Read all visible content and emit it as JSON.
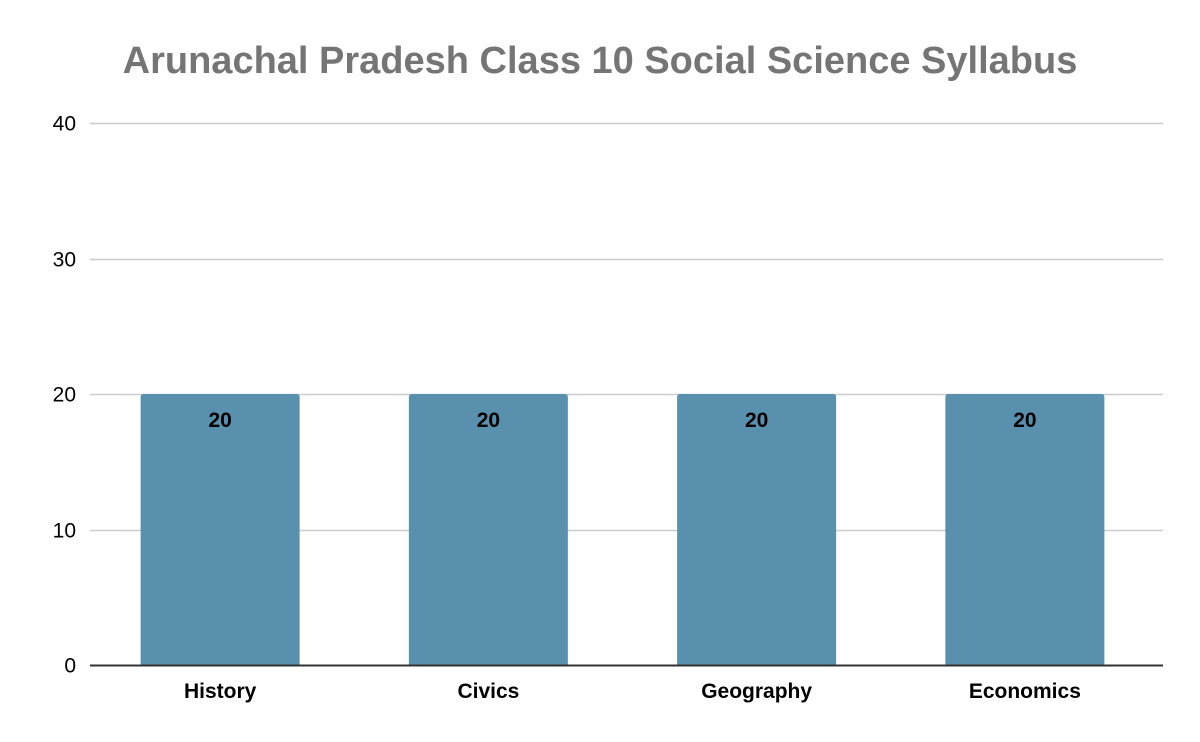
{
  "chart_data": {
    "type": "bar",
    "title": "Arunachal Pradesh Class 10 Social Science Syllabus",
    "xlabel": "",
    "ylabel": "",
    "categories": [
      "History",
      "Civics",
      "Geography",
      "Economics"
    ],
    "values": [
      20,
      20,
      20,
      20
    ],
    "data_labels": [
      "20",
      "20",
      "20",
      "20"
    ],
    "ylim": [
      0,
      40
    ],
    "yticks": [
      0,
      10,
      20,
      30,
      40
    ],
    "grid": true,
    "legend": "none",
    "colors": {
      "bar": "#5990ae",
      "title": "#757575",
      "grid": "#cccccc",
      "axis": "#333333"
    }
  }
}
